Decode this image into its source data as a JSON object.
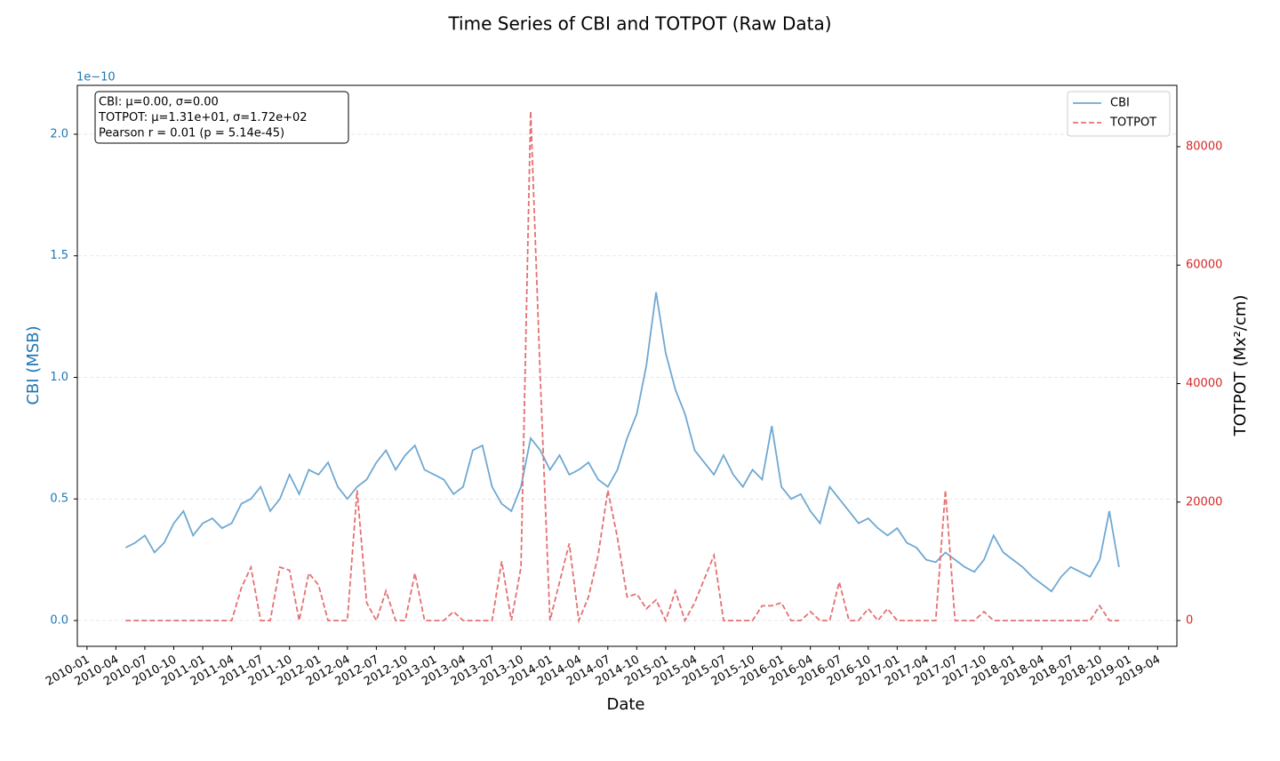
{
  "chart_data": {
    "type": "line",
    "title": "Time Series of CBI and TOTPOT (Raw Data)",
    "x_label": "Date",
    "y_label": "CBI (MSB)",
    "y2_label": "TOTPOT (Mx²/cm)",
    "y_offset_label": "1e−10",
    "stats_box": [
      "CBI: μ=0.00, σ=0.00",
      "TOTPOT: μ=1.31e+01, σ=1.72e+02",
      "Pearson r = 0.01 (p = 5.14e-45)"
    ],
    "legend": "upper right",
    "grid": true,
    "xlim": [
      "2009-12",
      "2019-06"
    ],
    "xticks": [
      "2010-01",
      "2010-04",
      "2010-07",
      "2010-10",
      "2011-01",
      "2011-04",
      "2011-07",
      "2011-10",
      "2012-01",
      "2012-04",
      "2012-07",
      "2012-10",
      "2013-01",
      "2013-04",
      "2013-07",
      "2013-10",
      "2014-01",
      "2014-04",
      "2014-07",
      "2014-10",
      "2015-01",
      "2015-04",
      "2015-07",
      "2015-10",
      "2016-01",
      "2016-04",
      "2016-07",
      "2016-10",
      "2017-01",
      "2017-04",
      "2017-07",
      "2017-10",
      "2018-01",
      "2018-04",
      "2018-07",
      "2018-10",
      "2019-01",
      "2019-04"
    ],
    "ylim": [
      -0.106,
      2.201
    ],
    "yticks": [
      {
        "value": 0,
        "label": "0.0"
      },
      0.5,
      {
        "value": 1,
        "label": "1.0"
      },
      1.5,
      {
        "value": 2,
        "label": "2.0"
      }
    ],
    "y2lim": [
      -4350,
      90350
    ],
    "y2ticks": [
      0,
      20000,
      40000,
      60000,
      80000
    ],
    "x": [
      "2010-05",
      "2010-06",
      "2010-07",
      "2010-08",
      "2010-09",
      "2010-10",
      "2010-11",
      "2010-12",
      "2011-01",
      "2011-02",
      "2011-03",
      "2011-04",
      "2011-05",
      "2011-06",
      "2011-07",
      "2011-08",
      "2011-09",
      "2011-10",
      "2011-11",
      "2011-12",
      "2012-01",
      "2012-02",
      "2012-03",
      "2012-04",
      "2012-05",
      "2012-06",
      "2012-07",
      "2012-08",
      "2012-09",
      "2012-10",
      "2012-11",
      "2012-12",
      "2013-01",
      "2013-02",
      "2013-03",
      "2013-04",
      "2013-05",
      "2013-06",
      "2013-07",
      "2013-08",
      "2013-09",
      "2013-10",
      "2013-11",
      "2013-12",
      "2014-01",
      "2014-02",
      "2014-03",
      "2014-04",
      "2014-05",
      "2014-06",
      "2014-07",
      "2014-08",
      "2014-09",
      "2014-10",
      "2014-11",
      "2014-12",
      "2015-01",
      "2015-02",
      "2015-03",
      "2015-04",
      "2015-05",
      "2015-06",
      "2015-07",
      "2015-08",
      "2015-09",
      "2015-10",
      "2015-11",
      "2015-12",
      "2016-01",
      "2016-02",
      "2016-03",
      "2016-04",
      "2016-05",
      "2016-06",
      "2016-07",
      "2016-08",
      "2016-09",
      "2016-10",
      "2016-11",
      "2016-12",
      "2017-01",
      "2017-02",
      "2017-03",
      "2017-04",
      "2017-05",
      "2017-06",
      "2017-07",
      "2017-08",
      "2017-09",
      "2017-10",
      "2017-11",
      "2017-12",
      "2018-01",
      "2018-02",
      "2018-03",
      "2018-04",
      "2018-05",
      "2018-06",
      "2018-07",
      "2018-08",
      "2018-09",
      "2018-10",
      "2018-11",
      "2018-12"
    ],
    "series": [
      {
        "name": "CBI",
        "color": "#6fa8d2",
        "linestyle": "solid",
        "values": [
          0.3,
          0.32,
          0.35,
          0.28,
          0.32,
          0.4,
          0.45,
          0.35,
          0.4,
          0.42,
          0.38,
          0.4,
          0.48,
          0.5,
          0.55,
          0.45,
          0.5,
          0.6,
          0.52,
          0.62,
          0.6,
          0.65,
          0.55,
          0.5,
          0.55,
          0.58,
          0.65,
          0.7,
          0.62,
          0.68,
          0.72,
          0.62,
          0.6,
          0.58,
          0.52,
          0.55,
          0.7,
          0.72,
          0.55,
          0.48,
          0.45,
          0.55,
          0.75,
          0.7,
          0.62,
          0.68,
          0.6,
          0.62,
          0.65,
          0.58,
          0.55,
          0.62,
          0.75,
          0.85,
          1.05,
          1.35,
          1.1,
          0.95,
          0.85,
          0.7,
          0.65,
          0.6,
          0.68,
          0.6,
          0.55,
          0.62,
          0.58,
          0.8,
          0.55,
          0.5,
          0.52,
          0.45,
          0.4,
          0.55,
          0.5,
          0.45,
          0.4,
          0.42,
          0.38,
          0.35,
          0.38,
          0.32,
          0.3,
          0.25,
          0.24,
          0.28,
          0.25,
          0.22,
          0.2,
          0.25,
          0.35,
          0.28,
          0.25,
          0.22,
          0.18,
          0.15,
          0.12,
          0.18,
          0.22,
          0.2,
          0.18,
          0.25,
          0.45,
          0.22
        ]
      },
      {
        "name": "TOTPOT",
        "color": "#e67072",
        "linestyle": "dashed",
        "axis": "y2",
        "values": [
          0,
          0,
          0,
          0,
          0,
          0,
          0,
          0,
          0,
          0,
          0,
          0,
          5500,
          9000,
          0,
          0,
          9000,
          8500,
          0,
          8000,
          6000,
          0,
          0,
          0,
          22000,
          3000,
          0,
          5000,
          0,
          0,
          8000,
          0,
          0,
          0,
          1500,
          0,
          0,
          0,
          0,
          10000,
          0,
          9000,
          86000,
          41000,
          0,
          6500,
          13000,
          0,
          4000,
          11000,
          22000,
          14000,
          4000,
          4500,
          2000,
          3500,
          0,
          5000,
          0,
          3000,
          7000,
          11000,
          0,
          0,
          0,
          0,
          2500,
          2500,
          3000,
          0,
          0,
          1500,
          0,
          0,
          6500,
          0,
          0,
          2000,
          0,
          2000,
          0,
          0,
          0,
          0,
          0,
          22000,
          0,
          0,
          0,
          1500,
          0,
          0,
          0,
          0,
          0,
          0,
          0,
          0,
          0,
          0,
          0,
          2500,
          0,
          0
        ]
      }
    ]
  }
}
